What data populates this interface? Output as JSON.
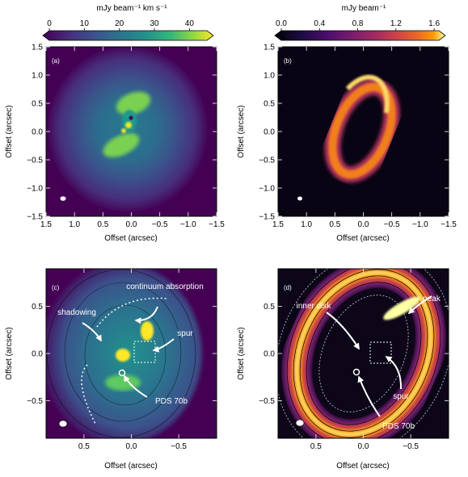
{
  "chart_data": [
    {
      "type": "heatmap",
      "panel_label": "(a)",
      "colorbar": {
        "label": "mJy beam⁻¹ km s⁻¹",
        "ticks": [
          "0",
          "10",
          "20",
          "30",
          "40"
        ],
        "range": [
          0,
          45
        ],
        "colormap": "viridis"
      },
      "xlabel": "Offset    (arcsec)",
      "ylabel": "Offset    (arcsec)",
      "xticks": [
        "1.5",
        "1.0",
        "0.5",
        "0.0",
        "−0.5",
        "−1.0",
        "−1.5"
      ],
      "yticks": [
        "1.5",
        "1.0",
        "0.5",
        "0.0",
        "−0.5",
        "−1.0",
        "−1.5"
      ],
      "xlim": [
        1.5,
        -1.5
      ],
      "ylim": [
        -1.5,
        1.5
      ]
    },
    {
      "type": "heatmap",
      "panel_label": "(b)",
      "colorbar": {
        "label": "mJy beam⁻¹",
        "ticks": [
          "0.0",
          "0.4",
          "0.8",
          "1.2",
          "1.6"
        ],
        "range": [
          0,
          1.65
        ],
        "colormap": "inferno"
      },
      "xlabel": "Offset    (arcsec)",
      "ylabel": "Offset    (arcsec)",
      "xticks": [
        "1.5",
        "1.0",
        "0.5",
        "0.0",
        "−0.5",
        "−1.0",
        "−1.5"
      ],
      "yticks": [
        "1.5",
        "1.0",
        "0.5",
        "0.0",
        "−0.5",
        "−1.0",
        "−1.5"
      ],
      "xlim": [
        1.5,
        -1.5
      ],
      "ylim": [
        -1.5,
        1.5
      ]
    },
    {
      "type": "heatmap",
      "panel_label": "(c)",
      "colormap": "viridis",
      "xlabel": "Offset    (arcsec)",
      "ylabel": "Offset    (arcsec)",
      "xticks": [
        "0.5",
        "0.0",
        "−0.5"
      ],
      "yticks": [
        "0.5",
        "0.0",
        "−0.5"
      ],
      "xlim": [
        0.9,
        -0.9
      ],
      "ylim": [
        -0.9,
        0.9
      ],
      "annotations": [
        "continuum absorption",
        "shadowing",
        "spur",
        "PDS 70b"
      ]
    },
    {
      "type": "heatmap",
      "panel_label": "(d)",
      "colormap": "inferno",
      "xlabel": "Offset    (arcsec)",
      "ylabel": "Offset    (arcsec)",
      "xticks": [
        "0.5",
        "0.0",
        "−0.5"
      ],
      "yticks": [
        "0.5",
        "0.0",
        "−0.5"
      ],
      "xlim": [
        0.9,
        -0.9
      ],
      "ylim": [
        -0.9,
        0.9
      ],
      "annotations": [
        "peak",
        "inner disk",
        "spur",
        "PDS 70b"
      ]
    }
  ]
}
